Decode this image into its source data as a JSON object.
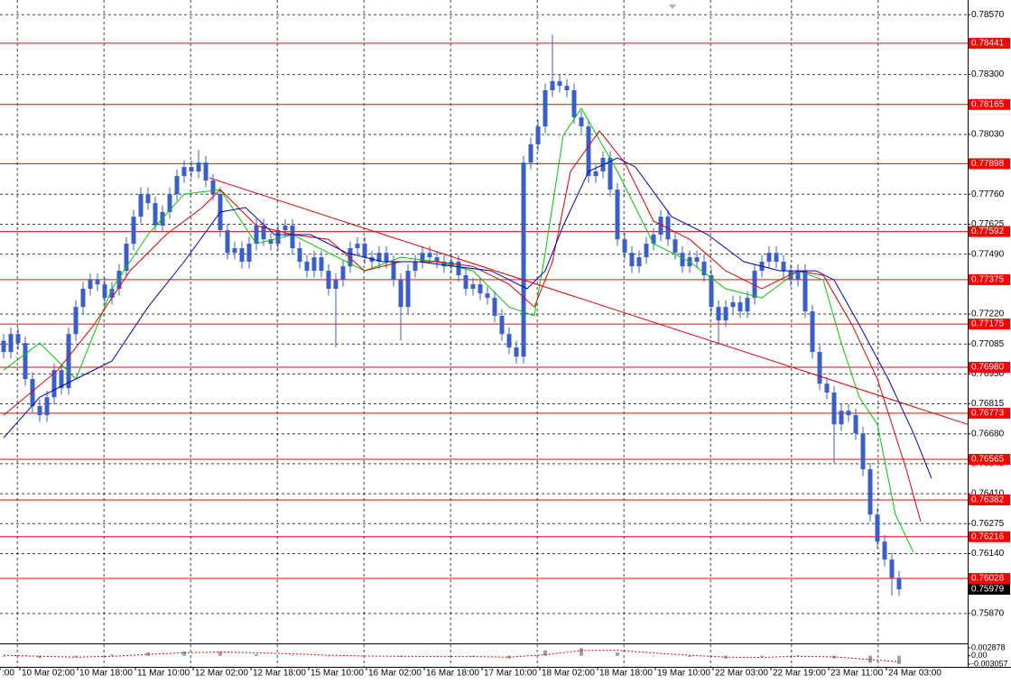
{
  "chart_data": {
    "type": "candlestick",
    "xlim": [
      -0.5,
      133.5
    ],
    "ylim": [
      0.75735,
      0.78636
    ],
    "grid": true,
    "candle_color": "#3a5fcd",
    "level_color": "#ff0000",
    "yticks": [
      {
        "value": 0.7857,
        "label": "0.78570"
      },
      {
        "value": 0.783,
        "label": "0.78300"
      },
      {
        "value": 0.7803,
        "label": "0.78030"
      },
      {
        "value": 0.7776,
        "label": "0.77760"
      },
      {
        "value": 0.77625,
        "label": "0.77625"
      },
      {
        "value": 0.7749,
        "label": "0.77490"
      },
      {
        "value": 0.7722,
        "label": "0.77220"
      },
      {
        "value": 0.77085,
        "label": "0.77085"
      },
      {
        "value": 0.7695,
        "label": "0.76950"
      },
      {
        "value": 0.76815,
        "label": "0.76815"
      },
      {
        "value": 0.7668,
        "label": "0.76680"
      },
      {
        "value": 0.76545,
        "label": "0.76545"
      },
      {
        "value": 0.7641,
        "label": "0.76410"
      },
      {
        "value": 0.76275,
        "label": "0.76275"
      },
      {
        "value": 0.7614,
        "label": "0.76140"
      },
      {
        "value": 0.7587,
        "label": "0.75870"
      }
    ],
    "xgrid": [
      1.9,
      13.9,
      25.9,
      37.9,
      49.9,
      61.9,
      73.9,
      85.9,
      97.9,
      109.1,
      121.1
    ],
    "xticks": [
      {
        "value": -0.5,
        "label": ":00"
      },
      {
        "value": 2.25,
        "label": "10 Mar 02:00"
      },
      {
        "value": 10.25,
        "label": "10 Mar 18:00"
      },
      {
        "value": 18.25,
        "label": "11 Mar 10:00"
      },
      {
        "value": 26.25,
        "label": "12 Mar 02:00"
      },
      {
        "value": 34.25,
        "label": "12 Mar 18:00"
      },
      {
        "value": 42.25,
        "label": "15 Mar 10:00"
      },
      {
        "value": 50.25,
        "label": "16 Mar 02:00"
      },
      {
        "value": 58.25,
        "label": "16 Mar 18:00"
      },
      {
        "value": 66.25,
        "label": "17 Mar 10:00"
      },
      {
        "value": 74.25,
        "label": "18 Mar 02:00"
      },
      {
        "value": 82.25,
        "label": "18 Mar 18:00"
      },
      {
        "value": 90.25,
        "label": "19 Mar 10:00"
      },
      {
        "value": 98.25,
        "label": "22 Mar 03:00"
      },
      {
        "value": 106.25,
        "label": "22 Mar 19:00"
      },
      {
        "value": 114.25,
        "label": "23 Mar 11:00"
      },
      {
        "value": 122.25,
        "label": "24 Mar 03:00"
      }
    ],
    "levels": [
      0.78441,
      0.78165,
      0.77898,
      0.77592,
      0.77375,
      0.77175,
      {
        "value": 0.7698,
        "label": "0.76980"
      },
      0.76773,
      0.76565,
      0.76382,
      0.76216,
      0.76028
    ],
    "last": 0.75979,
    "ohlc": [
      [
        0.771,
        0.7713,
        0.77019,
        0.77049
      ],
      [
        0.77049,
        0.7716,
        0.77019,
        0.7713
      ],
      [
        0.7713,
        0.7716,
        0.77059,
        0.77089
      ],
      [
        0.77089,
        0.77119,
        0.76897,
        0.76927
      ],
      [
        0.76927,
        0.76957,
        0.76775,
        0.76805
      ],
      [
        0.76805,
        0.76835,
        0.76734,
        0.76764
      ],
      [
        0.76764,
        0.76875,
        0.76734,
        0.76845
      ],
      [
        0.76845,
        0.76997,
        0.76815,
        0.76967
      ],
      [
        0.76967,
        0.76997,
        0.76856,
        0.76886
      ],
      [
        0.76886,
        0.7716,
        0.76856,
        0.7713
      ],
      [
        0.7713,
        0.77282,
        0.771,
        0.77252
      ],
      [
        0.77252,
        0.77364,
        0.77222,
        0.77334
      ],
      [
        0.77334,
        0.77404,
        0.77304,
        0.77374
      ],
      [
        0.77374,
        0.77404,
        0.77324,
        0.77354
      ],
      [
        0.77354,
        0.77384,
        0.77263,
        0.77293
      ],
      [
        0.77293,
        0.77364,
        0.77263,
        0.77334
      ],
      [
        0.77334,
        0.77445,
        0.77304,
        0.77415
      ],
      [
        0.77415,
        0.77567,
        0.77385,
        0.77537
      ],
      [
        0.77537,
        0.77689,
        0.77507,
        0.77659
      ],
      [
        0.77659,
        0.77791,
        0.77629,
        0.77761
      ],
      [
        0.77761,
        0.77791,
        0.7769,
        0.7772
      ],
      [
        0.7772,
        0.7775,
        0.77589,
        0.77619
      ],
      [
        0.77619,
        0.7771,
        0.77589,
        0.7768
      ],
      [
        0.7768,
        0.77791,
        0.7765,
        0.77761
      ],
      [
        0.77761,
        0.77872,
        0.77731,
        0.77842
      ],
      [
        0.77842,
        0.77913,
        0.77812,
        0.77883
      ],
      [
        0.77883,
        0.77913,
        0.77833,
        0.77863
      ],
      [
        0.77863,
        0.7796,
        0.77833,
        0.77903
      ],
      [
        0.77903,
        0.77933,
        0.77792,
        0.77822
      ],
      [
        0.77822,
        0.77852,
        0.77731,
        0.77761
      ],
      [
        0.77761,
        0.77791,
        0.77568,
        0.77598
      ],
      [
        0.77598,
        0.77628,
        0.77466,
        0.77496
      ],
      [
        0.77496,
        0.77547,
        0.77466,
        0.77517
      ],
      [
        0.77517,
        0.77547,
        0.77426,
        0.77456
      ],
      [
        0.77456,
        0.77567,
        0.77426,
        0.77537
      ],
      [
        0.77537,
        0.77649,
        0.77507,
        0.77619
      ],
      [
        0.77619,
        0.77649,
        0.77527,
        0.77557
      ],
      [
        0.77557,
        0.77587,
        0.77507,
        0.77537
      ],
      [
        0.77537,
        0.77628,
        0.77507,
        0.77598
      ],
      [
        0.77598,
        0.77649,
        0.77568,
        0.77619
      ],
      [
        0.77619,
        0.77649,
        0.77487,
        0.77517
      ],
      [
        0.77517,
        0.77547,
        0.77426,
        0.77456
      ],
      [
        0.77456,
        0.77486,
        0.77385,
        0.77415
      ],
      [
        0.77415,
        0.77506,
        0.77385,
        0.77476
      ],
      [
        0.77476,
        0.77506,
        0.77385,
        0.77415
      ],
      [
        0.77415,
        0.77445,
        0.77304,
        0.77334
      ],
      [
        0.77334,
        0.77404,
        0.7707,
        0.77374
      ],
      [
        0.77374,
        0.77465,
        0.77344,
        0.77435
      ],
      [
        0.77435,
        0.77547,
        0.77405,
        0.77517
      ],
      [
        0.77517,
        0.77567,
        0.77487,
        0.77537
      ],
      [
        0.77537,
        0.77567,
        0.77446,
        0.77476
      ],
      [
        0.77476,
        0.77506,
        0.77426,
        0.77456
      ],
      [
        0.77456,
        0.77526,
        0.77426,
        0.77496
      ],
      [
        0.77496,
        0.77526,
        0.77426,
        0.77456
      ],
      [
        0.77456,
        0.77486,
        0.77344,
        0.77374
      ],
      [
        0.77374,
        0.77404,
        0.771,
        0.77252
      ],
      [
        0.77252,
        0.77445,
        0.77222,
        0.77415
      ],
      [
        0.77415,
        0.77486,
        0.77385,
        0.77456
      ],
      [
        0.77456,
        0.77526,
        0.77426,
        0.77496
      ],
      [
        0.77496,
        0.77526,
        0.77446,
        0.77476
      ],
      [
        0.77476,
        0.77506,
        0.77426,
        0.77456
      ],
      [
        0.77456,
        0.77486,
        0.77405,
        0.77435
      ],
      [
        0.77435,
        0.77486,
        0.77405,
        0.77456
      ],
      [
        0.77456,
        0.77486,
        0.77365,
        0.77395
      ],
      [
        0.77395,
        0.77425,
        0.77304,
        0.77334
      ],
      [
        0.77334,
        0.77384,
        0.77304,
        0.77354
      ],
      [
        0.77354,
        0.77384,
        0.77283,
        0.77313
      ],
      [
        0.77313,
        0.77343,
        0.77263,
        0.77293
      ],
      [
        0.77293,
        0.77323,
        0.77182,
        0.77212
      ],
      [
        0.77212,
        0.77242,
        0.771,
        0.7713
      ],
      [
        0.7713,
        0.7716,
        0.77039,
        0.77069
      ],
      [
        0.77069,
        0.77099,
        0.76998,
        0.77028
      ],
      [
        0.77028,
        0.77933,
        0.76998,
        0.77903
      ],
      [
        0.77903,
        0.78015,
        0.77873,
        0.77985
      ],
      [
        0.77985,
        0.78096,
        0.77955,
        0.78066
      ],
      [
        0.78066,
        0.78259,
        0.78036,
        0.78229
      ],
      [
        0.78229,
        0.7848,
        0.78199,
        0.7827
      ],
      [
        0.7827,
        0.783,
        0.78219,
        0.78249
      ],
      [
        0.78249,
        0.78279,
        0.78199,
        0.78229
      ],
      [
        0.78229,
        0.78259,
        0.78077,
        0.78107
      ],
      [
        0.78107,
        0.78137,
        0.78036,
        0.78066
      ],
      [
        0.78066,
        0.78096,
        0.77812,
        0.77842
      ],
      [
        0.77842,
        0.77893,
        0.77812,
        0.77863
      ],
      [
        0.77863,
        0.77954,
        0.77833,
        0.77924
      ],
      [
        0.77924,
        0.77954,
        0.77751,
        0.77781
      ],
      [
        0.77781,
        0.77811,
        0.77527,
        0.77557
      ],
      [
        0.77557,
        0.77587,
        0.77466,
        0.77496
      ],
      [
        0.77496,
        0.77526,
        0.77405,
        0.77435
      ],
      [
        0.77435,
        0.77506,
        0.77405,
        0.77476
      ],
      [
        0.77476,
        0.77567,
        0.77446,
        0.77537
      ],
      [
        0.77537,
        0.77608,
        0.77507,
        0.77578
      ],
      [
        0.77578,
        0.77689,
        0.77548,
        0.77659
      ],
      [
        0.77659,
        0.77689,
        0.77527,
        0.77557
      ],
      [
        0.77557,
        0.77587,
        0.77466,
        0.77496
      ],
      [
        0.77496,
        0.77526,
        0.77405,
        0.77435
      ],
      [
        0.77435,
        0.77506,
        0.77405,
        0.77476
      ],
      [
        0.77476,
        0.77506,
        0.77426,
        0.77456
      ],
      [
        0.77456,
        0.77486,
        0.77365,
        0.77395
      ],
      [
        0.77395,
        0.77425,
        0.77222,
        0.77252
      ],
      [
        0.77252,
        0.77282,
        0.7708,
        0.77191
      ],
      [
        0.77191,
        0.77282,
        0.77161,
        0.77252
      ],
      [
        0.77252,
        0.77303,
        0.77222,
        0.77273
      ],
      [
        0.77273,
        0.77303,
        0.77202,
        0.77232
      ],
      [
        0.77232,
        0.77323,
        0.77202,
        0.77293
      ],
      [
        0.77293,
        0.77445,
        0.77263,
        0.77415
      ],
      [
        0.77415,
        0.77486,
        0.77385,
        0.77456
      ],
      [
        0.77456,
        0.77526,
        0.77426,
        0.77496
      ],
      [
        0.77496,
        0.77526,
        0.77426,
        0.77456
      ],
      [
        0.77456,
        0.77486,
        0.77385,
        0.77415
      ],
      [
        0.77415,
        0.77445,
        0.77344,
        0.77374
      ],
      [
        0.77374,
        0.77445,
        0.77344,
        0.77415
      ],
      [
        0.77415,
        0.77445,
        0.77202,
        0.77232
      ],
      [
        0.77232,
        0.77262,
        0.77019,
        0.77049
      ],
      [
        0.77049,
        0.77079,
        0.76876,
        0.76906
      ],
      [
        0.76906,
        0.76936,
        0.76836,
        0.76866
      ],
      [
        0.76866,
        0.76896,
        0.7655,
        0.76723
      ],
      [
        0.76723,
        0.76814,
        0.76693,
        0.76784
      ],
      [
        0.76784,
        0.76814,
        0.76734,
        0.76764
      ],
      [
        0.76764,
        0.76794,
        0.76652,
        0.76682
      ],
      [
        0.76682,
        0.76712,
        0.7649,
        0.7652
      ],
      [
        0.7652,
        0.7655,
        0.76286,
        0.76316
      ],
      [
        0.76316,
        0.76346,
        0.76164,
        0.76194
      ],
      [
        0.76194,
        0.76224,
        0.76083,
        0.76113
      ],
      [
        0.76113,
        0.76143,
        0.7595,
        0.76031
      ],
      [
        0.76031,
        0.76061,
        0.75949,
        0.75979
      ]
    ],
    "series": [
      {
        "color": "#00c800",
        "x": [
          0,
          5,
          10,
          15,
          20,
          25,
          30,
          35,
          40,
          45,
          50,
          55,
          60,
          65,
          70,
          73.5,
          75,
          77.5,
          80,
          85,
          90,
          95,
          100,
          105,
          110,
          113.5,
          116,
          118.5,
          121,
          123.5,
          126
        ],
        "values": [
          0.76967,
          0.77089,
          0.76927,
          0.77334,
          0.77578,
          0.77761,
          0.77781,
          0.77537,
          0.77578,
          0.77496,
          0.77415,
          0.77476,
          0.77456,
          0.77415,
          0.77252,
          0.77212,
          0.77496,
          0.78026,
          0.78148,
          0.77863,
          0.77537,
          0.77456,
          0.77334,
          0.77293,
          0.77415,
          0.77374,
          0.77089,
          0.76845,
          0.76723,
          0.76316,
          0.76145
        ]
      },
      {
        "color": "#e00000",
        "x": [
          0,
          7.5,
          12.5,
          17.5,
          22.5,
          27.5,
          30,
          35,
          40,
          45,
          50,
          55,
          60,
          65,
          70,
          73.5,
          76,
          78.5,
          82.5,
          86,
          90,
          95,
          100,
          105,
          110,
          113.5,
          117.5,
          121,
          125,
          127
        ],
        "values": [
          0.76764,
          0.76967,
          0.77171,
          0.77415,
          0.77578,
          0.777,
          0.77781,
          0.77619,
          0.77578,
          0.77557,
          0.77415,
          0.77456,
          0.77456,
          0.77435,
          0.77354,
          0.77252,
          0.77456,
          0.77863,
          0.78046,
          0.77903,
          0.77639,
          0.77557,
          0.77415,
          0.77334,
          0.77415,
          0.77395,
          0.77171,
          0.76927,
          0.7652,
          0.76284
        ]
      },
      {
        "color": "#0000c8",
        "x": [
          0,
          5,
          10,
          15,
          20,
          25,
          30,
          33.5,
          37.5,
          42.5,
          47.5,
          52.5,
          57.5,
          62.5,
          67.5,
          72.5,
          75,
          77.5,
          81,
          85,
          87.5,
          92.5,
          97.5,
          102.5,
          107.5,
          112.5,
          115,
          118.5,
          122.5,
          126,
          128.5
        ],
        "values": [
          0.76662,
          0.76845,
          0.76927,
          0.77008,
          0.77252,
          0.77456,
          0.7768,
          0.777,
          0.77578,
          0.77578,
          0.77496,
          0.77456,
          0.77456,
          0.77435,
          0.77415,
          0.77334,
          0.77415,
          0.77619,
          0.77863,
          0.77924,
          0.77883,
          0.77659,
          0.77578,
          0.77456,
          0.77415,
          0.77415,
          0.77374,
          0.77171,
          0.76927,
          0.76682,
          0.76479
        ]
      }
    ],
    "trendline": {
      "color": "#e00000",
      "x": [
        28.5,
        133.5
      ],
      "values": [
        0.77834,
        0.76723
      ]
    },
    "indicator": {
      "ylim": [
        -0.0034,
        0.0032
      ],
      "yticks": [
        0.002878,
        {
          "value": 0,
          "label": "0.00"
        },
        -0.003057
      ],
      "x": [
        0,
        5,
        10,
        15,
        20,
        25,
        30,
        35,
        40,
        45,
        50,
        55,
        60,
        65,
        70,
        75,
        80,
        85,
        90,
        95,
        100,
        105,
        110,
        115,
        120,
        124
      ],
      "histogram": [
        -0.0003,
        -0.0008,
        -0.0004,
        0.0004,
        0.0012,
        0.0016,
        0.0014,
        0.0006,
        0.0002,
        -0.0002,
        -0.0002,
        -0.0004,
        -0.0002,
        -0.0004,
        -0.001,
        0.002,
        0.0028,
        0.0012,
        -0.0002,
        -0.0004,
        -0.001,
        -0.0004,
        0.0002,
        -0.001,
        -0.0026,
        -0.003
      ],
      "histogram_color": "#a0a0a0",
      "signal": [
        0.0002,
        -0.0002,
        -0.0005,
        -0.0002,
        0.0005,
        0.0011,
        0.0014,
        0.0011,
        0.0007,
        0.0002,
        -0.0001,
        -0.0002,
        -0.0003,
        -0.0003,
        -0.0005,
        0.0004,
        0.0019,
        0.002,
        0.001,
        0.0002,
        -0.0005,
        -0.0006,
        -0.0002,
        -0.0004,
        -0.0014,
        -0.0022
      ],
      "signal_color": "#e00000"
    }
  }
}
